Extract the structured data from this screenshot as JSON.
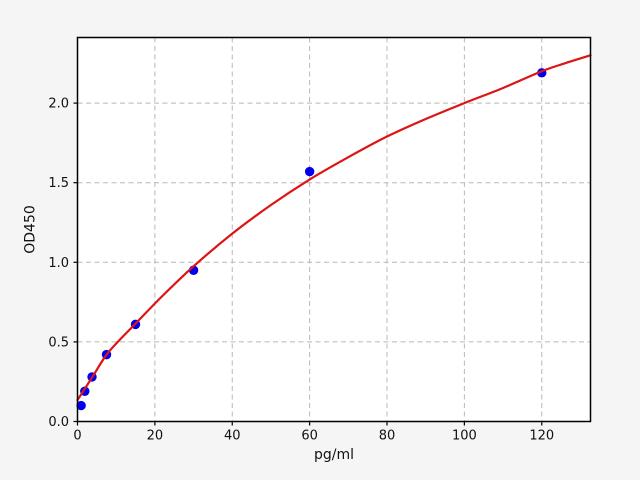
{
  "figure": {
    "background_color": "#f5f5f5",
    "plot_background_color": "#ffffff",
    "spine_color": "#000000",
    "grid_color": "#b8b8b8",
    "tick_color": "#000000",
    "text_color": "#111111"
  },
  "chart_data": {
    "type": "scatter",
    "title": "",
    "xlabel": "pg/ml",
    "ylabel": "OD450",
    "xlim": [
      0,
      132.6
    ],
    "ylim": [
      0,
      2.412
    ],
    "grid": true,
    "grid_style": "dashed",
    "legend": "none",
    "x_ticks": [
      0,
      20,
      40,
      60,
      80,
      100,
      120
    ],
    "x_tick_labels": [
      "0",
      "20",
      "40",
      "60",
      "80",
      "100",
      "120"
    ],
    "y_ticks": [
      0,
      0.5,
      1.0,
      1.5,
      2.0
    ],
    "y_tick_labels": [
      "0.0",
      "0.5",
      "1.0",
      "1.5",
      "2.0"
    ],
    "series": [
      {
        "name": "standard-points",
        "type": "scatter",
        "color": "#0000ee",
        "marker": "circle",
        "marker_radius": 4.7,
        "x": [
          0.94,
          1.88,
          3.75,
          7.5,
          15,
          30,
          60,
          120
        ],
        "y": [
          0.1,
          0.19,
          0.28,
          0.42,
          0.61,
          0.95,
          1.57,
          2.19
        ]
      },
      {
        "name": "fit-curve",
        "type": "line",
        "color": "#dd1414",
        "line_width": 2.2,
        "x": [
          0,
          2,
          4,
          8,
          15,
          22,
          30,
          40,
          50,
          60,
          70,
          80,
          90,
          100,
          110,
          120,
          126,
          132.6
        ],
        "y": [
          0.135,
          0.21,
          0.285,
          0.435,
          0.615,
          0.79,
          0.975,
          1.18,
          1.36,
          1.52,
          1.66,
          1.79,
          1.9,
          2.0,
          2.095,
          2.2,
          2.25,
          2.3
        ]
      }
    ]
  }
}
